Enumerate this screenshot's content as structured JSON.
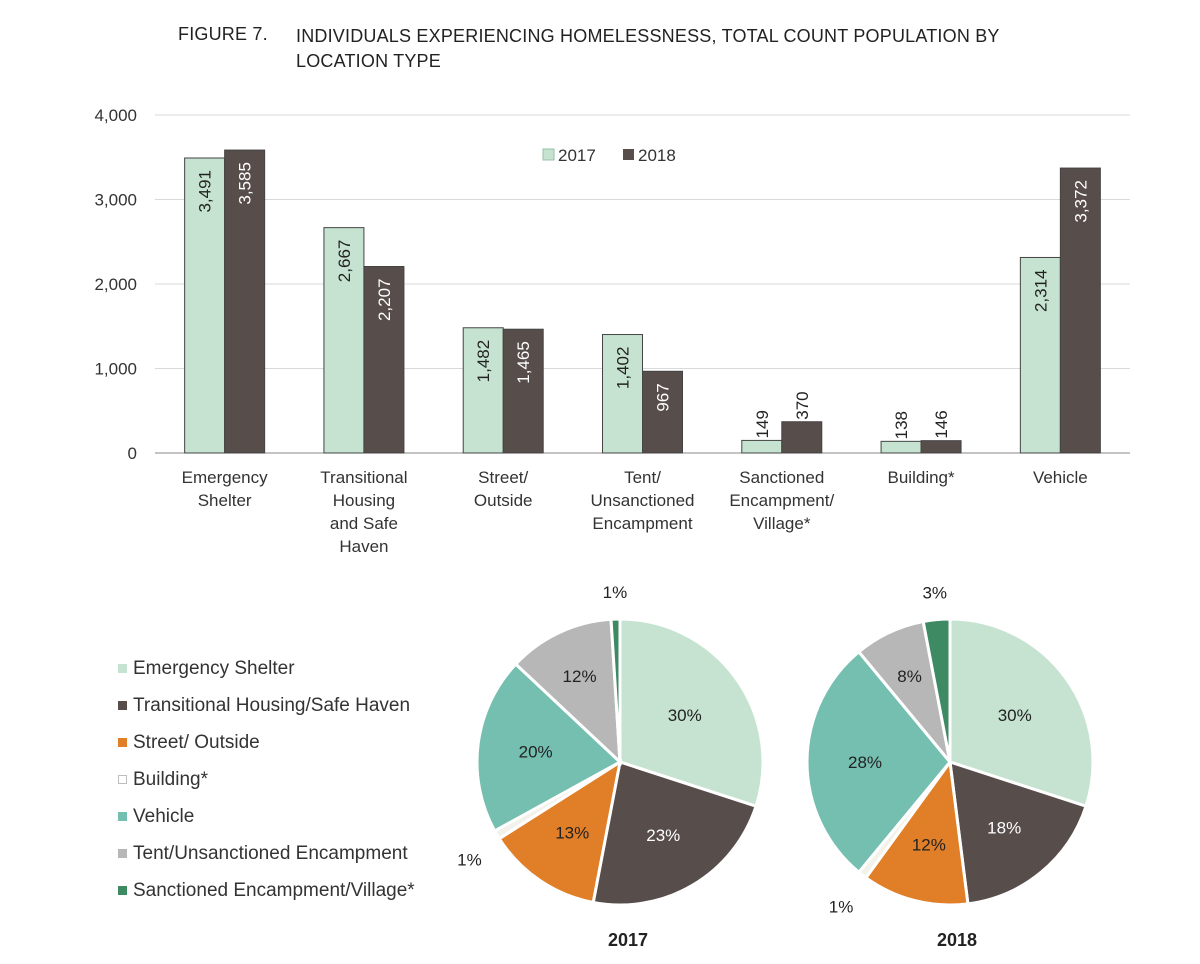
{
  "figure": {
    "label": "FIGURE 7.",
    "title": "INDIVIDUALS EXPERIENCING HOMELESSNESS, TOTAL COUNT POPULATION BY LOCATION TYPE"
  },
  "chart_data": [
    {
      "type": "bar",
      "categories": [
        [
          "Emergency",
          "Shelter"
        ],
        [
          "Transitional",
          "Housing",
          "and Safe",
          "Haven"
        ],
        [
          "Street/",
          "Outside"
        ],
        [
          "Tent/",
          "Unsanctioned",
          "Encampment"
        ],
        [
          "Sanctioned",
          "Encampment/",
          "Village*"
        ],
        [
          "Building*"
        ],
        [
          "Vehicle"
        ]
      ],
      "series": [
        {
          "name": "2017",
          "color": "#c5e3d0",
          "values": [
            3491,
            2667,
            1482,
            1402,
            149,
            138,
            2314
          ],
          "labels": [
            "3,491",
            "2,667",
            "1,482",
            "1,402",
            "149",
            "138",
            "2,314"
          ]
        },
        {
          "name": "2018",
          "color": "#574d4b",
          "values": [
            3585,
            2207,
            1465,
            967,
            370,
            146,
            3372
          ],
          "labels": [
            "3,585",
            "2,207",
            "1,465",
            "967",
            "370",
            "146",
            "3,372"
          ]
        }
      ],
      "ylim": [
        0,
        4000
      ],
      "yticks": [
        0,
        1000,
        2000,
        3000,
        4000
      ],
      "ytick_labels": [
        "0",
        "1,000",
        "2,000",
        "3,000",
        "4,000"
      ],
      "grid": true,
      "legend_position": "top-center"
    },
    {
      "type": "pie",
      "year_label": "2017",
      "slices": [
        {
          "category": "Emergency Shelter",
          "value": 30,
          "label": "30%",
          "color": "#c5e3d0"
        },
        {
          "category": "Transitional Housing/Safe Haven",
          "value": 23,
          "label": "23%",
          "color": "#574d4b"
        },
        {
          "category": "Street/ Outside",
          "value": 13,
          "label": "13%",
          "color": "#e07f28"
        },
        {
          "category": "Building*",
          "value": 1,
          "label": "1%",
          "color": "#f2f2ea"
        },
        {
          "category": "Vehicle",
          "value": 20,
          "label": "20%",
          "color": "#74bfb0"
        },
        {
          "category": "Tent/Unsanctioned Encampment",
          "value": 12,
          "label": "12%",
          "color": "#b7b7b7"
        },
        {
          "category": "Sanctioned Encampment/Village*",
          "value": 1,
          "label": "1%",
          "color": "#3e8a63"
        }
      ]
    },
    {
      "type": "pie",
      "year_label": "2018",
      "slices": [
        {
          "category": "Emergency Shelter",
          "value": 30,
          "label": "30%",
          "color": "#c5e3d0"
        },
        {
          "category": "Transitional Housing/Safe Haven",
          "value": 18,
          "label": "18%",
          "color": "#574d4b"
        },
        {
          "category": "Street/ Outside",
          "value": 12,
          "label": "12%",
          "color": "#e07f28"
        },
        {
          "category": "Building*",
          "value": 1,
          "label": "1%",
          "color": "#f2f2ea"
        },
        {
          "category": "Vehicle",
          "value": 28,
          "label": "28%",
          "color": "#74bfb0"
        },
        {
          "category": "Tent/Unsanctioned Encampment",
          "value": 8,
          "label": "8%",
          "color": "#b7b7b7"
        },
        {
          "category": "Sanctioned Encampment/Village*",
          "value": 3,
          "label": "3%",
          "color": "#3e8a63"
        }
      ]
    }
  ],
  "pie_legend": [
    {
      "label": "Emergency Shelter",
      "color": "#c5e3d0"
    },
    {
      "label": "Transitional Housing/Safe Haven",
      "color": "#574d4b"
    },
    {
      "label": "Street/ Outside",
      "color": "#e07f28"
    },
    {
      "label": "Building*",
      "color": "#ffffff",
      "outline": "#bdbdbd"
    },
    {
      "label": "Vehicle",
      "color": "#74bfb0"
    },
    {
      "label": "Tent/Unsanctioned Encampment",
      "color": "#b7b7b7"
    },
    {
      "label": "Sanctioned Encampment/Village*",
      "color": "#3e8a63"
    }
  ]
}
